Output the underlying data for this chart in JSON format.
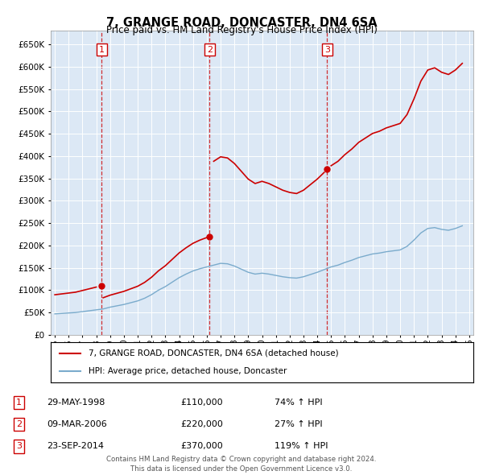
{
  "title": "7, GRANGE ROAD, DONCASTER, DN4 6SA",
  "subtitle": "Price paid vs. HM Land Registry's House Price Index (HPI)",
  "legend_line1": "7, GRANGE ROAD, DONCASTER, DN4 6SA (detached house)",
  "legend_line2": "HPI: Average price, detached house, Doncaster",
  "footer": "Contains HM Land Registry data © Crown copyright and database right 2024.\nThis data is licensed under the Open Government Licence v3.0.",
  "transactions": [
    {
      "num": 1,
      "date": "29-MAY-1998",
      "price": 110000,
      "hpi_change": "74% ↑ HPI",
      "year": 1998.4
    },
    {
      "num": 2,
      "date": "09-MAR-2006",
      "price": 220000,
      "hpi_change": "27% ↑ HPI",
      "year": 2006.2
    },
    {
      "num": 3,
      "date": "23-SEP-2014",
      "price": 370000,
      "hpi_change": "119% ↑ HPI",
      "year": 2014.72
    }
  ],
  "red_color": "#cc0000",
  "blue_color": "#7aabcc",
  "plot_bg": "#dce8f5",
  "ylim": [
    0,
    680000
  ],
  "yticks": [
    0,
    50000,
    100000,
    150000,
    200000,
    250000,
    300000,
    350000,
    400000,
    450000,
    500000,
    550000,
    600000,
    650000
  ],
  "xlim_start": 1994.7,
  "xlim_end": 2025.3,
  "hpi_years": [
    1995,
    1995.5,
    1996,
    1996.5,
    1997,
    1997.5,
    1998,
    1998.5,
    1999,
    1999.5,
    2000,
    2000.5,
    2001,
    2001.5,
    2002,
    2002.5,
    2003,
    2003.5,
    2004,
    2004.5,
    2005,
    2005.5,
    2006,
    2006.5,
    2007,
    2007.5,
    2008,
    2008.5,
    2009,
    2009.5,
    2010,
    2010.5,
    2011,
    2011.5,
    2012,
    2012.5,
    2013,
    2013.5,
    2014,
    2014.5,
    2015,
    2015.5,
    2016,
    2016.5,
    2017,
    2017.5,
    2018,
    2018.5,
    2019,
    2019.5,
    2020,
    2020.5,
    2021,
    2021.5,
    2022,
    2022.5,
    2023,
    2023.5,
    2024,
    2024.5
  ],
  "hpi_values": [
    47000,
    48000,
    49000,
    50000,
    52000,
    54000,
    56000,
    58000,
    62000,
    65000,
    68000,
    72000,
    76000,
    82000,
    90000,
    100000,
    108000,
    118000,
    128000,
    136000,
    143000,
    148000,
    152000,
    156000,
    160000,
    159000,
    154000,
    147000,
    140000,
    136000,
    138000,
    136000,
    133000,
    130000,
    128000,
    127000,
    130000,
    135000,
    140000,
    146000,
    152000,
    156000,
    162000,
    167000,
    173000,
    177000,
    181000,
    183000,
    186000,
    188000,
    190000,
    198000,
    212000,
    228000,
    238000,
    240000,
    236000,
    234000,
    238000,
    244000
  ]
}
